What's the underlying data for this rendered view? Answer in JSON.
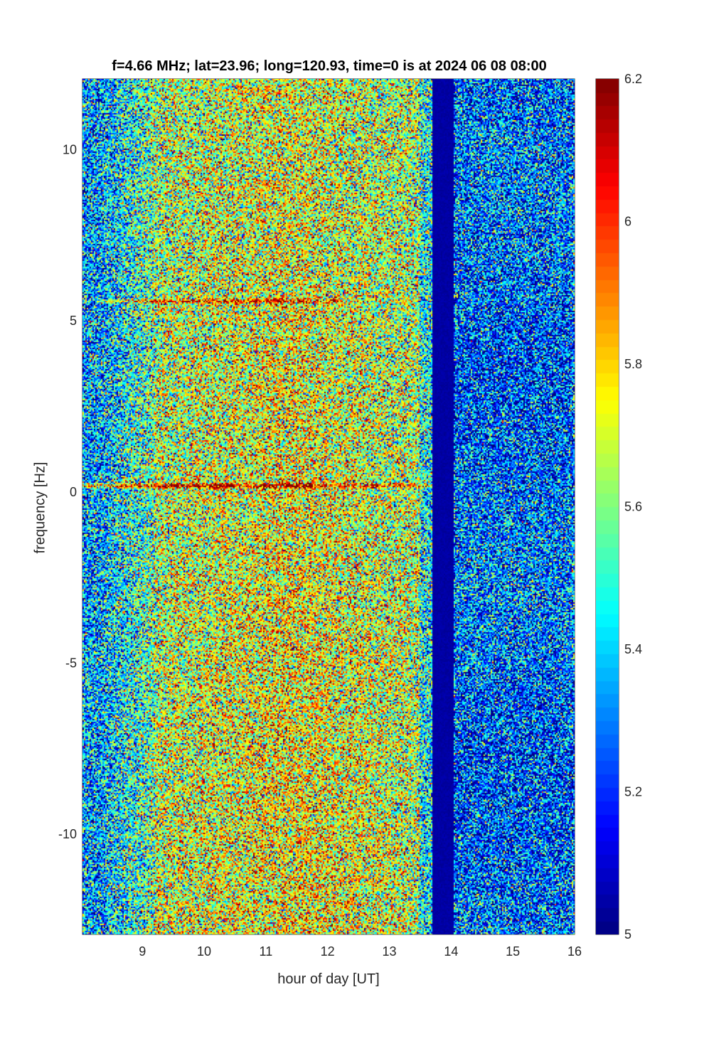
{
  "chart_data": {
    "type": "heatmap",
    "title": "f=4.66 MHz;  lat=23.96; long=120.93, time=0 is at 2024 06 08 08:00",
    "xlabel": "hour of day [UT]",
    "ylabel": "frequency [Hz]",
    "xlim": [
      8.03,
      16
    ],
    "ylim": [
      -12.93,
      12.07
    ],
    "xticks": [
      9,
      10,
      11,
      12,
      13,
      14,
      15,
      16
    ],
    "xtick_labels": [
      "9",
      "10",
      "11",
      "12",
      "13",
      "14",
      "15",
      "16"
    ],
    "yticks": [
      10,
      5,
      0,
      -5,
      -10
    ],
    "ytick_labels": [
      "10",
      "5",
      "0",
      "-5",
      "-10"
    ],
    "colorbar": {
      "colormap": "jet",
      "clim": [
        5,
        6.2
      ],
      "ticks": [
        6.2,
        6,
        5.8,
        5.6,
        5.4,
        5.2,
        5
      ],
      "tick_labels": [
        "6.2",
        "6",
        "5.8",
        "5.6",
        "5.4",
        "5.2",
        "5"
      ]
    },
    "features": {
      "data_gap_hours": [
        13.7,
        14.05
      ],
      "strong_line_frequency_hz": 0.2,
      "secondary_line_frequency_hz": 5.6,
      "elevated_power_hours": [
        9.2,
        13.5
      ]
    },
    "colors": {
      "background_low": "#1e57c8",
      "gap": "#000094",
      "peak": "#8b0000"
    }
  }
}
